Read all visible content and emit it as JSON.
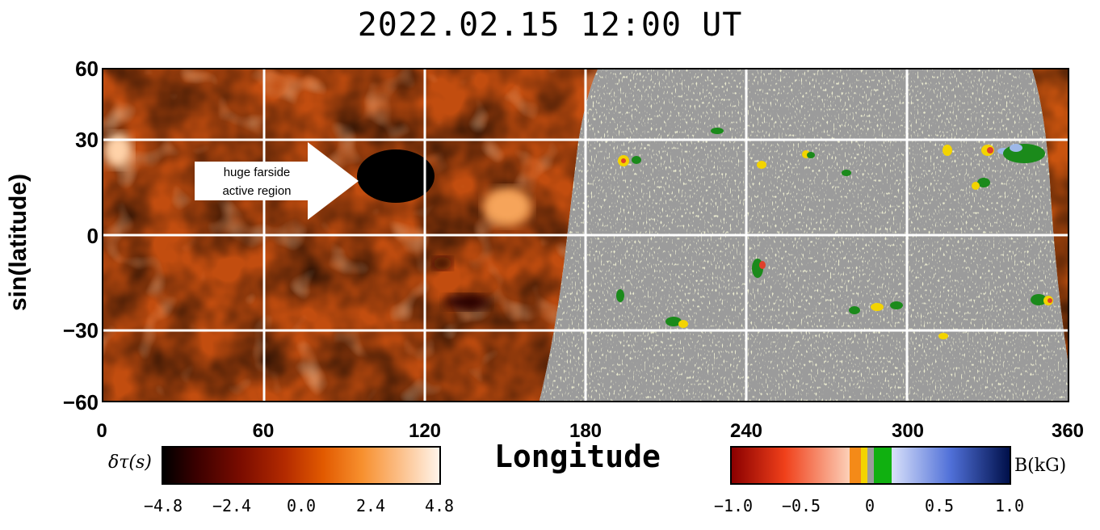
{
  "chart_data": {
    "type": "heatmap",
    "title": "2022.02.15  12:00  UT",
    "xlabel": "Longitude",
    "ylabel": "sin(latitude)",
    "xlim": [
      0,
      360
    ],
    "ylim": [
      -60,
      60
    ],
    "x_ticks": [
      "0",
      "60",
      "120",
      "180",
      "240",
      "300",
      "360"
    ],
    "y_ticks": [
      "60",
      "30",
      "0",
      "−30",
      "−60"
    ],
    "grid": true,
    "farside_map": {
      "quantity_label": "δτ(s)",
      "colorbar_ticks": [
        "−4.8",
        "−2.4",
        "0.0",
        "2.4",
        "4.8"
      ],
      "colorbar_range": [
        -4.8,
        4.8
      ],
      "annotation": {
        "line1": "huge farside",
        "line2": "active region",
        "region_center_lon": 105,
        "region_center_lat": 22
      }
    },
    "magnetogram": {
      "quantity_label": "B(kG)",
      "colorbar_ticks": [
        "−1.0",
        "−0.5",
        "0",
        "0.5",
        "1.0"
      ],
      "colorbar_range": [
        -1.0,
        1.0
      ]
    }
  }
}
